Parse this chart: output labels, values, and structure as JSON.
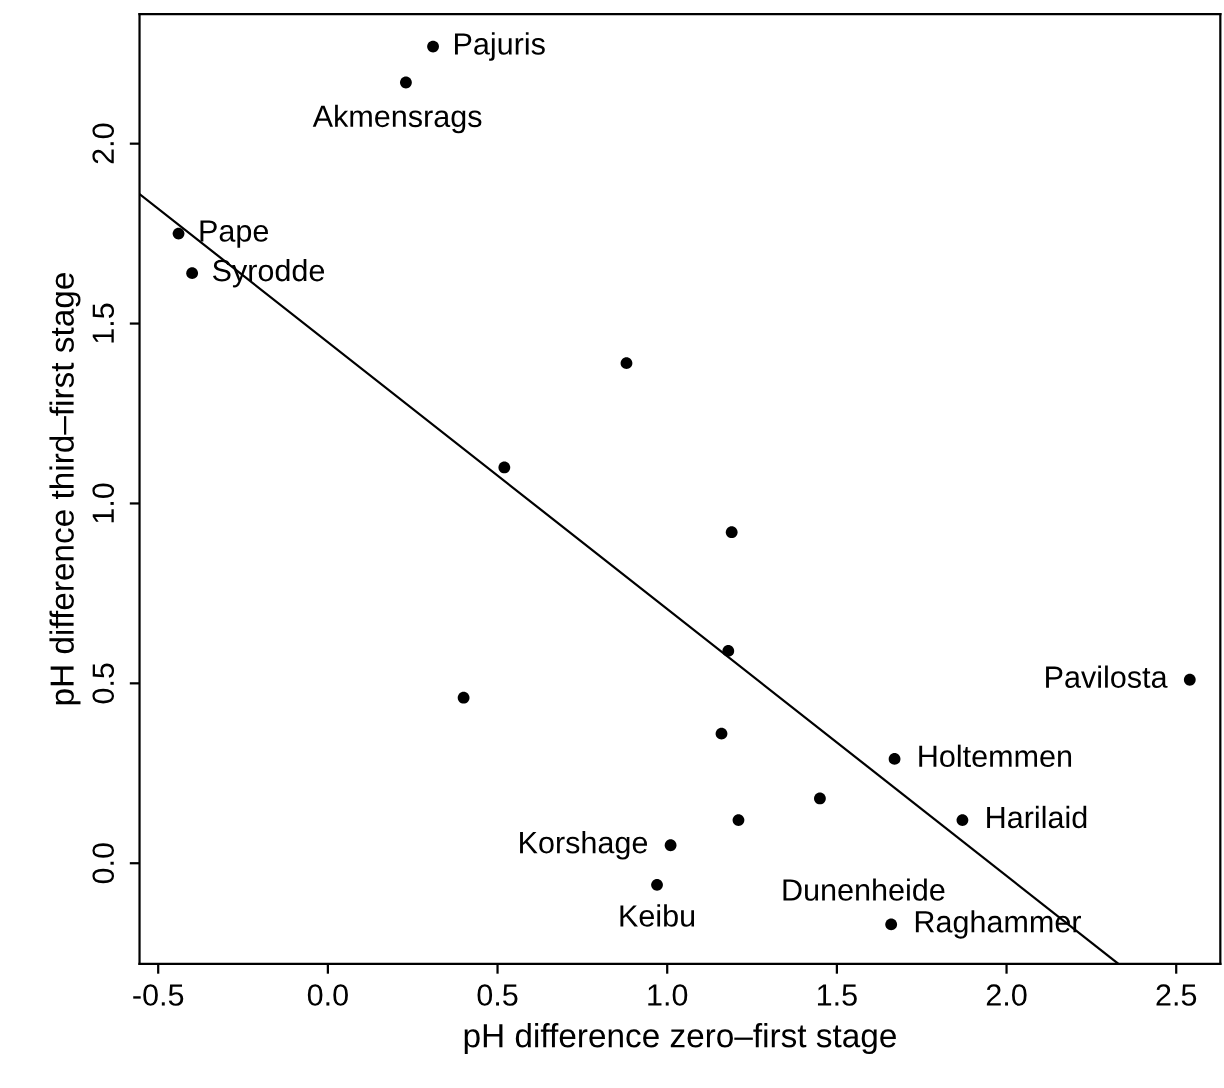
{
  "chart_data": {
    "type": "scatter",
    "xlabel": "pH difference zero–first stage",
    "ylabel": "pH difference third–first stage",
    "xlim": [
      -0.555,
      2.63
    ],
    "ylim": [
      -0.28,
      2.36
    ],
    "xticks": [
      -0.5,
      {
        "value": 0,
        "label": "0.0"
      },
      0.5,
      {
        "value": 1,
        "label": "1.0"
      },
      1.5,
      {
        "value": 2,
        "label": "2.0"
      },
      2.5
    ],
    "yticks": [
      {
        "value": 0,
        "label": "0.0"
      },
      0.5,
      {
        "value": 1,
        "label": "1.0"
      },
      1.5,
      {
        "value": 2,
        "label": "2.0"
      }
    ],
    "grid": false,
    "series": [
      {
        "marker": "circle",
        "color": "#000000",
        "x": [
          0.31,
          0.23,
          -0.44,
          -0.4,
          0.88,
          0.52,
          1.19,
          1.18,
          0.4,
          2.54,
          1.16,
          1.67,
          1.45,
          1.21,
          1.87,
          1.01,
          0.97,
          1.66
        ],
        "values": [
          2.27,
          2.17,
          1.75,
          1.64,
          1.39,
          1.1,
          0.92,
          0.59,
          0.46,
          0.51,
          0.36,
          0.29,
          0.18,
          0.12,
          0.12,
          0.05,
          -0.06,
          -0.17
        ]
      },
      {
        "type": "line",
        "color": "#000000",
        "x": [
          -0.555,
          2.33
        ],
        "values": [
          1.86,
          -0.28
        ]
      }
    ],
    "annotations": [
      {
        "text": "Pajuris",
        "x": 0.31,
        "y": 2.27
      },
      {
        "text": "Akmensrags",
        "x": 0.23,
        "y": 2.17
      },
      {
        "text": "Pape",
        "x": -0.44,
        "y": 1.75
      },
      {
        "text": "Syrodde",
        "x": -0.4,
        "y": 1.64
      },
      {
        "text": "Pavilosta",
        "x": 2.54,
        "y": 0.51
      },
      {
        "text": "Holtemmen",
        "x": 1.67,
        "y": 0.29
      },
      {
        "text": "Harilaid",
        "x": 1.87,
        "y": 0.12
      },
      {
        "text": "Korshage",
        "x": 1.01,
        "y": 0.05
      },
      {
        "text": "Keibu",
        "x": 0.97,
        "y": -0.06
      },
      {
        "text": "Dunenheide",
        "x": 1.66,
        "y": -0.16
      },
      {
        "text": "Raghammer",
        "x": 1.66,
        "y": -0.17
      }
    ]
  }
}
